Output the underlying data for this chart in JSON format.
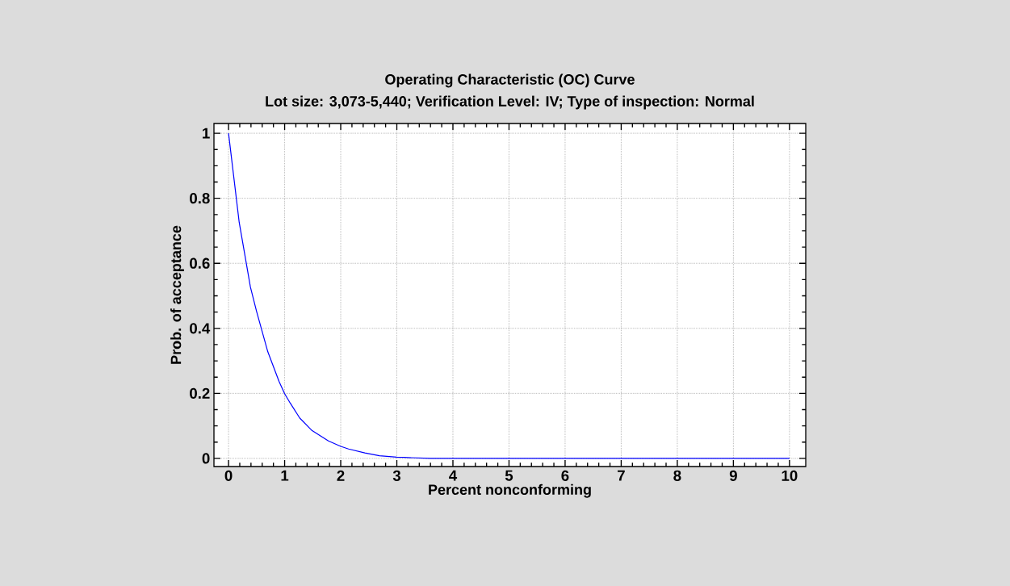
{
  "chart_data": {
    "type": "line",
    "title": "Operating Characteristic (OC) Curve",
    "subtitle": "Lot size: 3,073-5,440; Verification Level: IV; Type of inspection: Normal",
    "xlabel": "Percent nonconforming",
    "ylabel": "Prob. of acceptance",
    "x": [
      0,
      0.19,
      0.39,
      0.5,
      0.7,
      0.9,
      1.0,
      1.1,
      1.27,
      1.48,
      1.78,
      2.0,
      2.14,
      2.43,
      2.69,
      3.0,
      3.13,
      3.6,
      4,
      5,
      6,
      7,
      8,
      9,
      10
    ],
    "series": [
      {
        "color": "#0000ff",
        "values": [
          1,
          0.726,
          0.527,
          0.452,
          0.328,
          0.237,
          0.199,
          0.17,
          0.124,
          0.087,
          0.054,
          0.037,
          0.029,
          0.017,
          0.008,
          0.004,
          0.003,
          0.0,
          0,
          0,
          0,
          0,
          0,
          0,
          0
        ]
      }
    ],
    "xlim": [
      -0.26,
      10.29
    ],
    "ylim": [
      -0.025,
      1.03
    ],
    "xticks": [
      0,
      1,
      2,
      3,
      4,
      5,
      6,
      7,
      8,
      9,
      10
    ],
    "yticks": [
      0,
      0.2,
      0.4,
      0.6,
      0.8,
      1
    ],
    "grid": true,
    "marker": "none",
    "line_style": "solid"
  }
}
